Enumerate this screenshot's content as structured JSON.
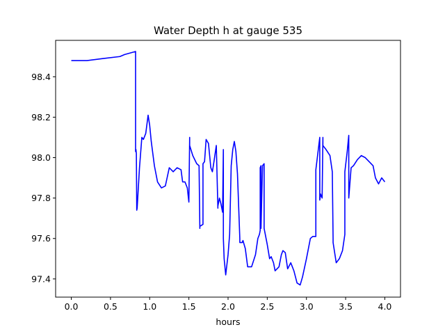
{
  "chart_data": {
    "type": "line",
    "title": "Water Depth h at gauge 535",
    "xlabel": "hours",
    "ylabel": "",
    "xlim": [
      -0.2,
      4.2
    ],
    "ylim": [
      97.31,
      98.58
    ],
    "xticks": [
      0.0,
      0.5,
      1.0,
      1.5,
      2.0,
      2.5,
      3.0,
      3.5,
      4.0
    ],
    "xtick_labels": [
      "0.0",
      "0.5",
      "1.0",
      "1.5",
      "2.0",
      "2.5",
      "3.0",
      "3.5",
      "4.0"
    ],
    "yticks": [
      97.4,
      97.6,
      97.8,
      98.0,
      98.2,
      98.4
    ],
    "ytick_labels": [
      "97.4",
      "97.6",
      "97.8",
      "98.0",
      "98.2",
      "98.4"
    ],
    "grid": false,
    "legend": "none",
    "series": [
      {
        "color": "#0000ff",
        "x": [
          0.0,
          0.2,
          0.4,
          0.62,
          0.68,
          0.82,
          0.82,
          0.825,
          0.83,
          0.835,
          0.84,
          0.87,
          0.9,
          0.92,
          0.95,
          0.98,
          1.0,
          1.02,
          1.06,
          1.1,
          1.15,
          1.2,
          1.25,
          1.3,
          1.35,
          1.4,
          1.42,
          1.45,
          1.48,
          1.5,
          1.51,
          1.51,
          1.55,
          1.6,
          1.63,
          1.64,
          1.64,
          1.68,
          1.68,
          1.7,
          1.72,
          1.75,
          1.78,
          1.8,
          1.82,
          1.85,
          1.87,
          1.87,
          1.89,
          1.91,
          1.93,
          1.94,
          1.94,
          1.95,
          1.97,
          2.0,
          2.02,
          2.04,
          2.06,
          2.08,
          2.1,
          2.12,
          2.15,
          2.15,
          2.18,
          2.19,
          2.22,
          2.25,
          2.3,
          2.35,
          2.38,
          2.4,
          2.41,
          2.41,
          2.42,
          2.42,
          2.44,
          2.46,
          2.46,
          2.5,
          2.53,
          2.55,
          2.58,
          2.6,
          2.65,
          2.68,
          2.7,
          2.73,
          2.76,
          2.8,
          2.84,
          2.88,
          2.92,
          2.95,
          3.0,
          3.05,
          3.08,
          3.12,
          3.12,
          3.17,
          3.17,
          3.18,
          3.2,
          3.21,
          3.21,
          3.25,
          3.3,
          3.33,
          3.34,
          3.34,
          3.38,
          3.42,
          3.46,
          3.49,
          3.49,
          3.52,
          3.54,
          3.54,
          3.57,
          3.6,
          3.65,
          3.7,
          3.75,
          3.8,
          3.85,
          3.88,
          3.92,
          3.96,
          4.0
        ],
        "y": [
          98.48,
          98.48,
          98.49,
          98.5,
          98.51,
          98.525,
          98.03,
          98.04,
          98.02,
          97.74,
          97.75,
          97.95,
          98.1,
          98.09,
          98.12,
          98.21,
          98.16,
          98.08,
          97.96,
          97.88,
          97.85,
          97.86,
          97.95,
          97.93,
          97.95,
          97.94,
          97.88,
          97.88,
          97.85,
          97.78,
          98.1,
          98.06,
          98.01,
          97.97,
          97.96,
          97.65,
          97.66,
          97.67,
          97.97,
          97.98,
          98.09,
          98.07,
          97.95,
          97.93,
          97.98,
          98.06,
          97.75,
          97.76,
          97.8,
          97.77,
          97.73,
          98.04,
          97.6,
          97.5,
          97.42,
          97.52,
          97.62,
          97.96,
          98.04,
          98.08,
          98.03,
          97.92,
          97.6,
          97.58,
          97.58,
          97.59,
          97.55,
          97.46,
          97.46,
          97.52,
          97.6,
          97.62,
          97.64,
          97.95,
          97.96,
          97.65,
          97.96,
          97.97,
          97.65,
          97.57,
          97.5,
          97.51,
          97.48,
          97.44,
          97.46,
          97.52,
          97.54,
          97.53,
          97.45,
          97.48,
          97.44,
          97.38,
          97.37,
          97.41,
          97.5,
          97.6,
          97.61,
          97.61,
          97.94,
          98.1,
          97.79,
          97.82,
          97.8,
          98.1,
          98.06,
          98.04,
          98.01,
          97.93,
          97.6,
          97.58,
          97.48,
          97.5,
          97.54,
          97.62,
          97.93,
          98.03,
          98.11,
          97.8,
          97.95,
          97.96,
          97.99,
          98.01,
          98.0,
          97.98,
          97.96,
          97.9,
          97.87,
          97.9,
          97.88
        ]
      }
    ]
  }
}
